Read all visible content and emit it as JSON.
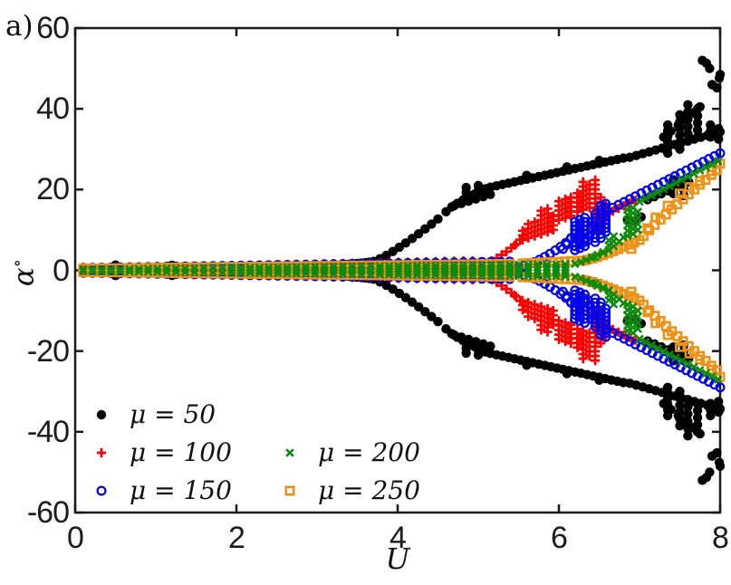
{
  "page": {
    "panel_label": "a)"
  },
  "chart_data": {
    "type": "scatter",
    "title": "",
    "xlabel": "U",
    "ylabel": "α∘",
    "ylabel_main": "α",
    "ylabel_sup": "∘",
    "xlim": [
      0,
      8
    ],
    "ylim": [
      -60,
      60
    ],
    "grid": false,
    "frame_color": "#1a1a1a",
    "x_ticks": [
      {
        "v": 0,
        "label": "0"
      },
      {
        "v": 2,
        "label": "2"
      },
      {
        "v": 4,
        "label": "4"
      },
      {
        "v": 6,
        "label": "6"
      },
      {
        "v": 8,
        "label": "8"
      }
    ],
    "y_ticks": [
      {
        "v": 60,
        "label": "60"
      },
      {
        "v": 40,
        "label": "40"
      },
      {
        "v": 20,
        "label": "20"
      },
      {
        "v": 0,
        "label": "0"
      },
      {
        "v": -20,
        "label": "-20"
      },
      {
        "v": -40,
        "label": "-40"
      },
      {
        "v": -60,
        "label": "-60"
      }
    ],
    "legend": {
      "position": "lower-left",
      "items": [
        {
          "label": "μ = 50",
          "series": "mu-50"
        },
        {
          "label": "μ = 100",
          "series": "mu-100"
        },
        {
          "label": "μ = 150",
          "series": "mu-150"
        },
        {
          "label": "μ = 200",
          "series": "mu-200"
        },
        {
          "label": "μ = 250",
          "series": "mu-250"
        }
      ]
    },
    "series": [
      {
        "name": "mu-50",
        "label": "μ = 50",
        "marker": "circle_filled",
        "color": "#000000",
        "mirror": true,
        "band": {
          "u0": 0.1,
          "u1": 3.65,
          "du": 0.115,
          "base": 0.25,
          "slope": 0.22,
          "cap": 2.0,
          "spacing": 0.75
        },
        "chains": [
          {
            "u0": 3.7,
            "u1": 4.55,
            "du": 0.08,
            "a0": 2.2,
            "a1": 13.5,
            "pow": 1.2
          },
          {
            "u0": 4.6,
            "u1": 5.1,
            "du": 0.07,
            "a0": 14.5,
            "a1": 20.3,
            "pow": 0.8
          },
          {
            "u0": 5.15,
            "u1": 6.8,
            "du": 0.075,
            "a0": 20.6,
            "a1": 27.8,
            "pow": 1
          },
          {
            "u0": 6.88,
            "u1": 8.0,
            "du": 0.08,
            "a0": 28.0,
            "a1": 34.3,
            "pow": 1
          },
          {
            "u0": 7.3,
            "u1": 7.78,
            "du": 0.09,
            "a0": 33.0,
            "a1": 41.0,
            "pow": 1
          },
          {
            "u0": 4.7,
            "u1": 5.15,
            "du": 0.09,
            "a0": 16.0,
            "a1": 18.8,
            "pow": 1
          },
          {
            "u0": 7.1,
            "u1": 7.62,
            "du": 0.085,
            "a0": 17.5,
            "a1": 22.0,
            "pow": 1
          }
        ],
        "stacks": [
          {
            "u": 4.85,
            "a0": 18.0,
            "a1": 20.5,
            "step": 1.25
          },
          {
            "u": 5.0,
            "a0": 18.5,
            "a1": 21.0,
            "step": 1.25
          },
          {
            "u": 7.35,
            "a0": 29,
            "a1": 36,
            "step": 1.4
          },
          {
            "u": 7.5,
            "a0": 30,
            "a1": 40,
            "step": 1.7
          },
          {
            "u": 7.6,
            "a0": 32,
            "a1": 41,
            "step": 1.8
          },
          {
            "u": 7.72,
            "a0": 33,
            "a1": 40,
            "step": 1.75
          },
          {
            "u": 7.88,
            "a0": 33,
            "a1": 36.5,
            "step": 1.5
          },
          {
            "u": 7.98,
            "a0": 32.5,
            "a1": 35.5,
            "step": 1.3
          },
          {
            "u": 7.42,
            "a0": 19,
            "a1": 22.5,
            "step": 1.7
          },
          {
            "u": 7.55,
            "a0": 18.5,
            "a1": 21.5,
            "step": 1.5
          }
        ],
        "points": [
          [
            7.78,
            52
          ],
          [
            7.83,
            51.3
          ],
          [
            7.87,
            50
          ],
          [
            7.9,
            46
          ],
          [
            7.96,
            45.2
          ],
          [
            7.99,
            47.6
          ],
          [
            8.0,
            48.5
          ],
          [
            6.85,
            12.6
          ],
          [
            6.93,
            12.1
          ],
          [
            7.02,
            13.2
          ],
          [
            0.5,
            1.3
          ],
          [
            1.2,
            -1.25
          ],
          [
            2.5,
            1.3
          ],
          [
            5.6,
            23.5
          ],
          [
            6.1,
            25.6
          ],
          [
            6.5,
            27.2
          ],
          [
            3.35,
            1.4
          ],
          [
            3.45,
            1.6
          ],
          [
            3.55,
            1.8
          ],
          [
            3.65,
            2.0
          ],
          [
            3.4,
            -1.5
          ],
          [
            3.5,
            -1.7
          ],
          [
            3.6,
            -1.9
          ],
          [
            3.62,
            1.9
          ]
        ]
      },
      {
        "name": "mu-100",
        "label": "μ = 100",
        "marker": "plus",
        "color": "#FF0000",
        "mirror": true,
        "band": {
          "u0": 0.1,
          "u1": 5.0,
          "du": 0.115,
          "base": 0.3,
          "slope": 0.42,
          "cap": 2.6,
          "spacing": 0.85
        },
        "chains": [
          {
            "u0": 5.05,
            "u1": 5.5,
            "du": 0.06,
            "a0": 1.3,
            "a1": 7.0,
            "pow": 1.3
          },
          {
            "u0": 6.6,
            "u1": 6.95,
            "du": 0.07,
            "a0": 14.0,
            "a1": 17.3,
            "pow": 1
          }
        ],
        "stacks": [
          {
            "u": 5.55,
            "a0": 7.5,
            "a1": 10.2,
            "step": 1.15
          },
          {
            "u": 5.62,
            "a0": 8,
            "a1": 11.5,
            "step": 1.15
          },
          {
            "u": 5.7,
            "a0": 8.5,
            "a1": 13,
            "step": 1.15
          },
          {
            "u": 5.78,
            "a0": 9,
            "a1": 15.5,
            "step": 1.15
          },
          {
            "u": 5.86,
            "a0": 9.5,
            "a1": 16,
            "step": 1.15
          },
          {
            "u": 5.93,
            "a0": 10,
            "a1": 14.5,
            "step": 1.15
          },
          {
            "u": 6.0,
            "a0": 12.5,
            "a1": 17.5,
            "step": 1.15
          },
          {
            "u": 6.08,
            "a0": 13,
            "a1": 18.2,
            "step": 1.15
          },
          {
            "u": 6.15,
            "a0": 13.5,
            "a1": 19,
            "step": 1.15
          },
          {
            "u": 6.23,
            "a0": 14.5,
            "a1": 20,
            "step": 1.15
          },
          {
            "u": 6.3,
            "a0": 15,
            "a1": 22,
            "step": 1.15
          },
          {
            "u": 6.38,
            "a0": 15.5,
            "a1": 21.5,
            "step": 1.15
          },
          {
            "u": 6.45,
            "a0": 12,
            "a1": 22.5,
            "step": 1.15
          },
          {
            "u": 6.52,
            "a0": 10,
            "a1": 19,
            "step": 1.15
          },
          {
            "u": 6.58,
            "a0": 13,
            "a1": 16.5,
            "step": 1.15
          },
          {
            "u": 6.42,
            "a0": 9.5,
            "a1": 11.5,
            "step": 1.0
          }
        ],
        "points": [
          [
            5.45,
            6.2
          ],
          [
            5.52,
            7.6
          ],
          [
            5.35,
            4.6
          ]
        ]
      },
      {
        "name": "mu-150",
        "label": "μ = 150",
        "marker": "circle_open",
        "color": "#0000EE",
        "mirror": true,
        "band": {
          "u0": 0.1,
          "u1": 5.45,
          "du": 0.115,
          "base": 0.55,
          "slope": 0.3,
          "cap": 2.2,
          "spacing": 0.8
        },
        "chains": [
          {
            "u0": 5.5,
            "u1": 6.15,
            "du": 0.065,
            "a0": 0.9,
            "a1": 7.8,
            "pow": 1.5
          },
          {
            "u0": 6.6,
            "u1": 8.0,
            "du": 0.07,
            "a0": 14.8,
            "a1": 29.0,
            "pow": 1
          }
        ],
        "stacks": [
          {
            "u": 6.2,
            "a0": 5,
            "a1": 12.5,
            "step": 1.0
          },
          {
            "u": 6.26,
            "a0": 5.5,
            "a1": 13,
            "step": 1.0
          },
          {
            "u": 6.32,
            "a0": 6,
            "a1": 13.5,
            "step": 1.0
          },
          {
            "u": 6.45,
            "a0": 7,
            "a1": 14.5,
            "step": 1.0
          },
          {
            "u": 6.52,
            "a0": 8,
            "a1": 16,
            "step": 1.0
          },
          {
            "u": 6.58,
            "a0": 9.5,
            "a1": 16.8,
            "step": 1.0
          }
        ],
        "points": [
          [
            6.05,
            5.3
          ],
          [
            6.1,
            6.4
          ],
          [
            6.38,
            8.6
          ],
          [
            6.4,
            10.2
          ],
          [
            6.36,
            7.4
          ],
          [
            6.42,
            12.2
          ],
          [
            6.15,
            8.0
          ]
        ]
      },
      {
        "name": "mu-250",
        "label": "μ = 250",
        "marker": "square_open",
        "color": "#ED9216",
        "mirror": true,
        "band": {
          "u0": 0.1,
          "u1": 5.5,
          "du": 0.115,
          "base": 0.4,
          "slope": 0.22,
          "cap": 1.7,
          "spacing": 0.7
        },
        "chains": [
          {
            "u0": 5.55,
            "u1": 6.3,
            "du": 0.075,
            "a0": 1.7,
            "a1": 2.4,
            "pow": 1
          },
          {
            "u0": 6.35,
            "u1": 7.0,
            "du": 0.065,
            "a0": 2.6,
            "a1": 7.5,
            "pow": 1.2
          },
          {
            "u0": 7.05,
            "u1": 8.0,
            "du": 0.07,
            "a0": 8.5,
            "a1": 25.5,
            "pow": 0.95
          }
        ],
        "stacks": [],
        "points": [
          [
            7.2,
            13.1
          ],
          [
            7.35,
            16
          ],
          [
            7.5,
            19
          ],
          [
            7.62,
            20.6
          ],
          [
            7.75,
            22.1
          ],
          [
            7.9,
            24.6
          ],
          [
            8.0,
            26.4
          ],
          [
            6.9,
            5.3
          ],
          [
            7.1,
            10.4
          ]
        ]
      },
      {
        "name": "mu-200",
        "label": "μ = 200",
        "marker": "x",
        "color": "#0C8A0C",
        "mirror": true,
        "band": {
          "u0": 0.1,
          "u1": 6.15,
          "du": 0.115,
          "base": 0.18,
          "slope": 0.22,
          "cap": 1.5,
          "spacing": 0.8
        },
        "chains": [
          {
            "u0": 6.2,
            "u1": 6.6,
            "du": 0.07,
            "a0": 1.6,
            "a1": 5.0,
            "pow": 1.2
          },
          {
            "u0": 7.0,
            "u1": 8.0,
            "du": 0.075,
            "a0": 17.0,
            "a1": 27.3,
            "pow": 1
          }
        ],
        "stacks": [
          {
            "u": 6.62,
            "a0": 5,
            "a1": 7.6,
            "step": 1.2
          },
          {
            "u": 6.68,
            "a0": 6,
            "a1": 9,
            "step": 1.2
          },
          {
            "u": 6.85,
            "a0": 8.5,
            "a1": 16,
            "step": 1.3
          },
          {
            "u": 6.92,
            "a0": 9,
            "a1": 16.5,
            "step": 1.3
          },
          {
            "u": 6.98,
            "a0": 10,
            "a1": 15,
            "step": 1.5
          }
        ],
        "points": [
          [
            6.75,
            7.1
          ],
          [
            6.8,
            8.2
          ],
          [
            6.45,
            3.3
          ],
          [
            6.55,
            4.3
          ]
        ]
      }
    ]
  }
}
